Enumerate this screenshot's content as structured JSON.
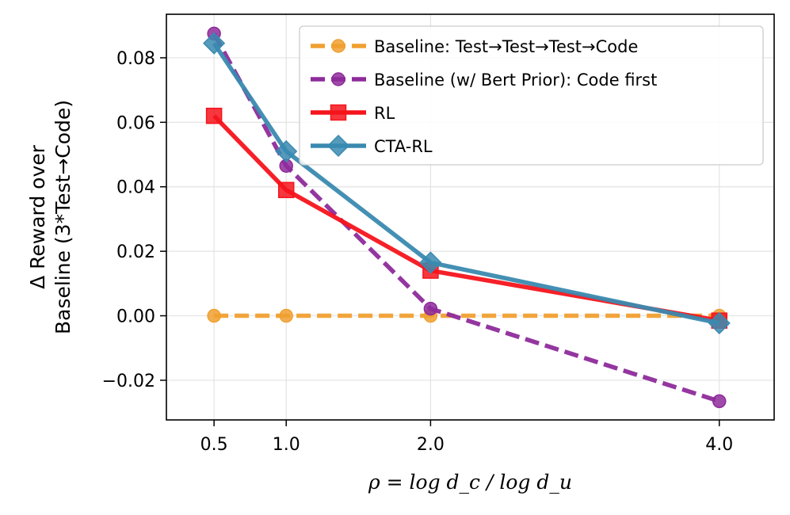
{
  "chart_data": {
    "type": "line",
    "xlabel": "ρ = log d_c / log d_u",
    "ylabel_line1": "Δ Reward over",
    "ylabel_line2": "Baseline (3*Test→Code)",
    "x": [
      0.5,
      1.0,
      2.0,
      4.0
    ],
    "x_tick_labels": [
      "0.5",
      "1.0",
      "2.0",
      "4.0"
    ],
    "y_ticks": [
      -0.02,
      0.0,
      0.02,
      0.04,
      0.06,
      0.08
    ],
    "y_tick_labels": [
      "−0.02",
      "0.00",
      "0.02",
      "0.04",
      "0.06",
      "0.08"
    ],
    "xlim": [
      0.17,
      4.38
    ],
    "ylim": [
      -0.0323,
      0.0935
    ],
    "grid": true,
    "legend_position": "top-right",
    "series": [
      {
        "name": "Baseline: Test→Test→Test→Code",
        "values": [
          0.0,
          0.0,
          0.0,
          0.0
        ],
        "color": "#F0A030",
        "marker": "circle",
        "linestyle": "dashed"
      },
      {
        "name": "Baseline (w/ Bert Prior): Code first",
        "values": [
          0.0875,
          0.0465,
          0.0022,
          -0.0265
        ],
        "color": "#8E2B9B",
        "marker": "circle",
        "linestyle": "dashed"
      },
      {
        "name": "RL",
        "values": [
          0.062,
          0.039,
          0.014,
          -0.0015
        ],
        "color": "#F5141C",
        "marker": "square",
        "linestyle": "solid"
      },
      {
        "name": "CTA-RL",
        "values": [
          0.0845,
          0.051,
          0.0165,
          -0.0023
        ],
        "color": "#3A8AB0",
        "marker": "diamond",
        "linestyle": "solid"
      }
    ]
  }
}
